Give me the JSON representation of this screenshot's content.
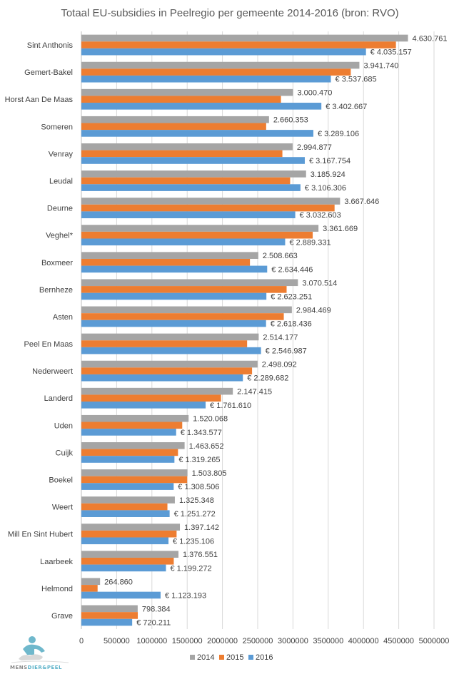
{
  "chart_data": {
    "type": "bar",
    "orientation": "horizontal",
    "title": "Totaal EU-subsidies in Peelregio per gemeente 2014-2016 (bron:  RVO)",
    "xlabel": "",
    "ylabel": "",
    "xlim": [
      0,
      5000000
    ],
    "x_ticks": [
      0,
      500000,
      1000000,
      1500000,
      2000000,
      2500000,
      3000000,
      3500000,
      4000000,
      4500000,
      5000000
    ],
    "x_tick_labels": [
      "0",
      "500000",
      "1000000",
      "1500000",
      "2000000",
      "2500000",
      "3000000",
      "3500000",
      "4000000",
      "4500000",
      "5000000"
    ],
    "grid": "vertical",
    "legend_position": "bottom",
    "categories": [
      "Sint Anthonis",
      "Gemert-Bakel",
      "Horst Aan De Maas",
      "Someren",
      "Venray",
      "Leudal",
      "Deurne",
      "Veghel*",
      "Boxmeer",
      "Bernheze",
      "Asten",
      "Peel En Maas",
      "Nederweert",
      "Landerd",
      "Uden",
      "Cuijk",
      "Boekel",
      "Weert",
      "Mill En Sint Hubert",
      "Laarbeek",
      "Helmond",
      "Grave"
    ],
    "series": [
      {
        "name": "2014",
        "color": "#a5a5a5",
        "values": [
          4630761,
          3941740,
          3000470,
          2660353,
          2994877,
          3185924,
          3667646,
          3361669,
          2508663,
          3070514,
          2984469,
          2514177,
          2498092,
          2147415,
          1520068,
          1463652,
          1503805,
          1325348,
          1397142,
          1376551,
          264860,
          798384
        ],
        "labels": [
          "4.630.761",
          "3.941.740",
          "3.000.470",
          "2.660.353",
          "2.994.877",
          "3.185.924",
          "3.667.646",
          "3.361.669",
          "2.508.663",
          "3.070.514",
          "2.984.469",
          "2.514.177",
          "2.498.092",
          "2.147.415",
          "1.520.068",
          "1.463.652",
          "1.503.805",
          "1.325.348",
          "1.397.142",
          "1.376.551",
          "264.860",
          "798.384"
        ]
      },
      {
        "name": "2015",
        "color": "#ed7d31",
        "values": [
          4460000,
          3820000,
          2830000,
          2620000,
          2850000,
          2960000,
          3590000,
          3280000,
          2390000,
          2910000,
          2870000,
          2350000,
          2420000,
          1980000,
          1430000,
          1370000,
          1500000,
          1220000,
          1350000,
          1310000,
          230000,
          800000
        ],
        "labels": []
      },
      {
        "name": "2016",
        "color": "#5b9bd5",
        "values": [
          4035157,
          3537685,
          3402667,
          3289106,
          3167754,
          3106306,
          3032603,
          2889331,
          2634446,
          2623251,
          2618436,
          2546987,
          2289682,
          1761610,
          1343577,
          1319265,
          1308506,
          1251272,
          1235106,
          1199272,
          1123193,
          720211
        ],
        "labels": [
          "€ 4.035.157",
          "€ 3.537.685",
          "€ 3.402.667",
          "€ 3.289.106",
          "€ 3.167.754",
          "€ 3.106.306",
          "€ 3.032.603",
          "€ 2.889.331",
          "€ 2.634.446",
          "€ 2.623.251",
          "€ 2.618.436",
          "€ 2.546.987",
          "€ 2.289.682",
          "€ 1.761.610",
          "€ 1.343.577",
          "€ 1.319.265",
          "€ 1.308.506",
          "€ 1.251.272",
          "€ 1.235.106",
          "€ 1.199.272",
          "€ 1.123.193",
          "€ 720.211"
        ]
      }
    ]
  },
  "logo": {
    "text_part1": "MENS",
    "text_part2": "DIER&PEEL"
  }
}
